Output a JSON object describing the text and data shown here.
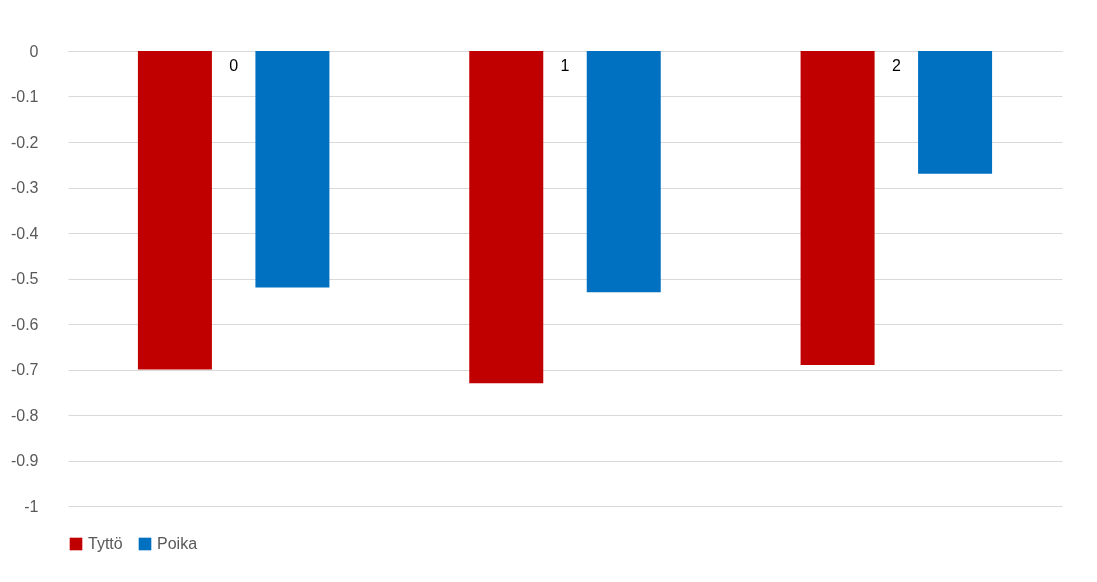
{
  "chart_data": {
    "type": "bar",
    "categories": [
      "0",
      "1",
      "2"
    ],
    "series": [
      {
        "name": "Tyttö",
        "color": "#c00000",
        "values": [
          -0.7,
          -0.73,
          -0.69
        ]
      },
      {
        "name": "Poika",
        "color": "#0070c0",
        "values": [
          -0.52,
          -0.53,
          -0.27
        ]
      }
    ],
    "ylim": [
      -1,
      0
    ],
    "yticks": [
      0,
      -0.1,
      -0.2,
      -0.3,
      -0.4,
      -0.5,
      -0.6,
      -0.7,
      -0.8,
      -0.9,
      -1
    ],
    "grid": "y",
    "legend": "bottom"
  }
}
